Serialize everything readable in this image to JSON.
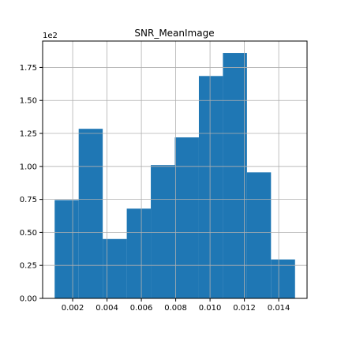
{
  "chart_data": {
    "type": "bar",
    "title": "SNR_MeanImage",
    "xlabel": "",
    "ylabel": "",
    "y_offset_label": "1e2",
    "bins": [
      {
        "x0": 0.00095,
        "x1": 0.00235,
        "value": 0.745
      },
      {
        "x0": 0.00235,
        "x1": 0.00375,
        "value": 1.285
      },
      {
        "x0": 0.00375,
        "x1": 0.00515,
        "value": 0.45
      },
      {
        "x0": 0.00515,
        "x1": 0.00655,
        "value": 0.68
      },
      {
        "x0": 0.00655,
        "x1": 0.00795,
        "value": 1.01
      },
      {
        "x0": 0.00795,
        "x1": 0.00935,
        "value": 1.22
      },
      {
        "x0": 0.00935,
        "x1": 0.01075,
        "value": 1.685
      },
      {
        "x0": 0.01075,
        "x1": 0.01215,
        "value": 1.86
      },
      {
        "x0": 0.01215,
        "x1": 0.01355,
        "value": 0.955
      },
      {
        "x0": 0.01355,
        "x1": 0.01495,
        "value": 0.295
      }
    ],
    "xlim": [
      0.00025,
      0.01565
    ],
    "ylim": [
      0,
      1.95
    ],
    "xticks": [
      0.002,
      0.004,
      0.006,
      0.008,
      0.01,
      0.012,
      0.014
    ],
    "xtick_labels": [
      "0.002",
      "0.004",
      "0.006",
      "0.008",
      "0.010",
      "0.012",
      "0.014"
    ],
    "yticks": [
      0.0,
      0.25,
      0.5,
      0.75,
      1.0,
      1.25,
      1.5,
      1.75
    ],
    "ytick_labels": [
      "0.00",
      "0.25",
      "0.50",
      "0.75",
      "1.00",
      "1.25",
      "1.50",
      "1.75"
    ],
    "grid": true,
    "bar_color": "#1f77b4",
    "grid_color": "#b0b0b0"
  }
}
